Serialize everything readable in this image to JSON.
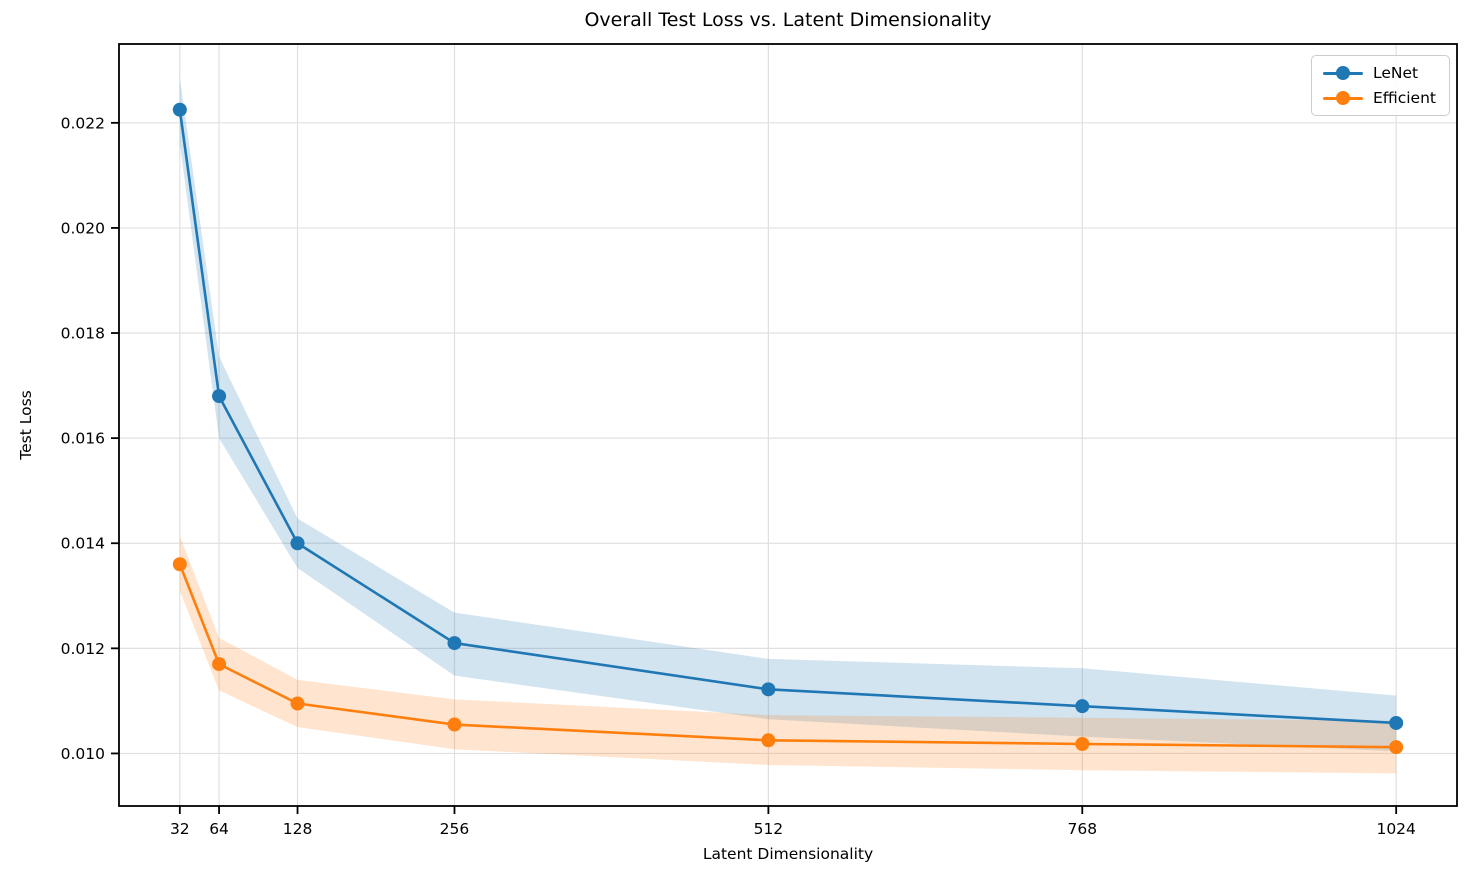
{
  "chart_data": {
    "type": "line",
    "title": "Overall Test Loss vs. Latent Dimensionality",
    "xlabel": "Latent Dimensionality",
    "ylabel": "Test Loss",
    "x": [
      32,
      64,
      128,
      256,
      512,
      768,
      1024
    ],
    "x_tick_labels": [
      "32",
      "64",
      "128",
      "256",
      "512",
      "768",
      "1024"
    ],
    "y_ticks": [
      0.01,
      0.012,
      0.014,
      0.016,
      0.018,
      0.02,
      0.022
    ],
    "y_tick_labels": [
      "0.010",
      "0.012",
      "0.014",
      "0.016",
      "0.018",
      "0.020",
      "0.022"
    ],
    "xlim": [
      -17.6,
      1073.6
    ],
    "ylim": [
      0.009,
      0.0235
    ],
    "grid": true,
    "legend_position": "upper right",
    "series": [
      {
        "name": "LeNet",
        "color": "#1f77b4",
        "values": [
          0.02225,
          0.0168,
          0.014,
          0.0121,
          0.01122,
          0.0109,
          0.01058
        ],
        "band_upper": [
          0.02285,
          0.01755,
          0.01447,
          0.01268,
          0.0118,
          0.01162,
          0.0111
        ],
        "band_lower": [
          0.0216,
          0.016,
          0.01353,
          0.01148,
          0.01065,
          0.01032,
          0.01004
        ]
      },
      {
        "name": "Efficient",
        "color": "#ff7f0e",
        "values": [
          0.0136,
          0.0117,
          0.01095,
          0.01055,
          0.01025,
          0.01018,
          0.01012
        ],
        "band_upper": [
          0.01414,
          0.0122,
          0.0114,
          0.01103,
          0.01073,
          0.01068,
          0.01062
        ],
        "band_lower": [
          0.01309,
          0.0112,
          0.0105,
          0.01008,
          0.00978,
          0.00968,
          0.00962
        ]
      }
    ],
    "style": {
      "grid_color": "#e0e0e0",
      "spine_color": "#000000",
      "background": "#ffffff",
      "band_opacity": 0.2,
      "line_width": 2.6,
      "marker_radius": 7
    }
  }
}
